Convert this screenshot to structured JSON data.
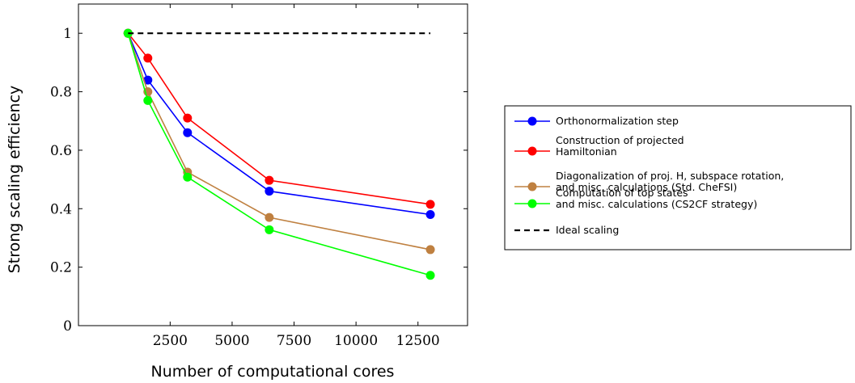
{
  "chart_data": {
    "type": "line",
    "title": "",
    "xlabel": "Number of computational cores",
    "ylabel": "Strong scaling efficiency",
    "xlim": [
      -1200,
      14500
    ],
    "ylim": [
      0,
      1.1
    ],
    "xticks": [
      2500,
      5000,
      7500,
      10000,
      12500
    ],
    "xtick_labels": [
      "2500",
      "5000",
      "7500",
      "10000",
      "12500"
    ],
    "yticks": [
      0,
      0.2,
      0.4,
      0.6,
      0.8,
      1
    ],
    "ytick_labels": [
      "0",
      "0.2",
      "0.4",
      "0.6",
      "0.8",
      "1"
    ],
    "grid": false,
    "legend_position": "right",
    "series": [
      {
        "name": [
          "Orthonormalization step"
        ],
        "color": "#0000ff",
        "x": [
          800,
          1600,
          3200,
          6500,
          13000
        ],
        "y": [
          1,
          0.84,
          0.66,
          0.46,
          0.38
        ]
      },
      {
        "name": [
          "Construction of projected",
          "Hamiltonian"
        ],
        "color": "#ff0000",
        "x": [
          800,
          1600,
          3200,
          6500,
          13000
        ],
        "y": [
          1,
          0.915,
          0.71,
          0.497,
          0.415
        ]
      },
      {
        "name": [
          "Diagonalization of proj. H, subspace rotation,",
          "and misc. calculations (Std. CheFSI)"
        ],
        "color": "#bf8040",
        "x": [
          800,
          1600,
          3200,
          6500,
          13000
        ],
        "y": [
          1,
          0.8,
          0.525,
          0.37,
          0.26
        ]
      },
      {
        "name": [
          "Computation of top states",
          "and misc. calculations (CS2CF strategy)"
        ],
        "color": "#00ff00",
        "x": [
          800,
          1600,
          3200,
          6500,
          13000
        ],
        "y": [
          1,
          0.77,
          0.508,
          0.328,
          0.172
        ]
      },
      {
        "name": [
          "Ideal scaling"
        ],
        "color": "#000000",
        "dashed": true,
        "x": [
          800,
          13000
        ],
        "y": [
          1,
          1
        ]
      }
    ]
  }
}
